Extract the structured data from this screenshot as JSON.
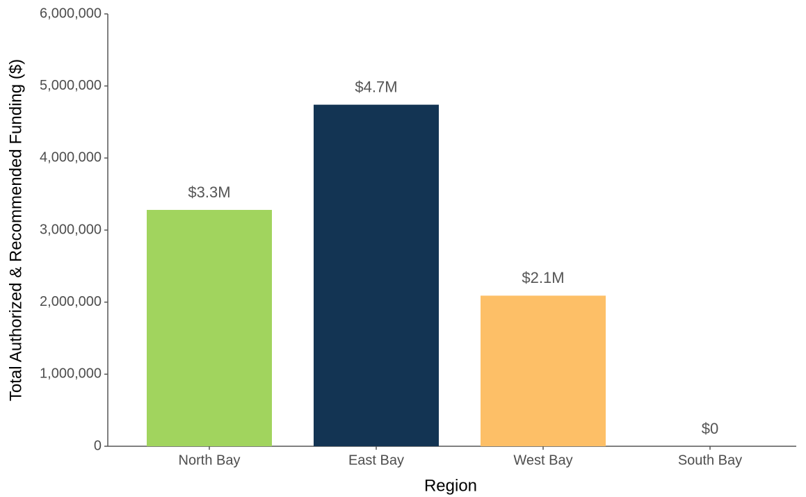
{
  "chart_data": {
    "type": "bar",
    "x_label": "Region",
    "y_label": "Total Authorized & Recommended Funding ($)",
    "categories": [
      "North Bay",
      "East Bay",
      "West Bay",
      "South Bay"
    ],
    "values": [
      3280000,
      4740000,
      2090000,
      0
    ],
    "value_labels": [
      "$3.3M",
      "$4.7M",
      "$2.1M",
      "$0"
    ],
    "colors": [
      "#a1d45e",
      "#133453",
      "#fdbf67",
      "#999999"
    ],
    "ylim": [
      0,
      6000000
    ],
    "yticks": [
      0,
      {
        "value": 1000000,
        "label": "1,000,000"
      },
      {
        "value": 2000000,
        "label": "2,000,000"
      },
      {
        "value": 3000000,
        "label": "3,000,000"
      },
      {
        "value": 4000000,
        "label": "4,000,000"
      },
      {
        "value": 5000000,
        "label": "5,000,000"
      },
      {
        "value": 6000000,
        "label": "6,000,000"
      }
    ],
    "grid": false
  }
}
